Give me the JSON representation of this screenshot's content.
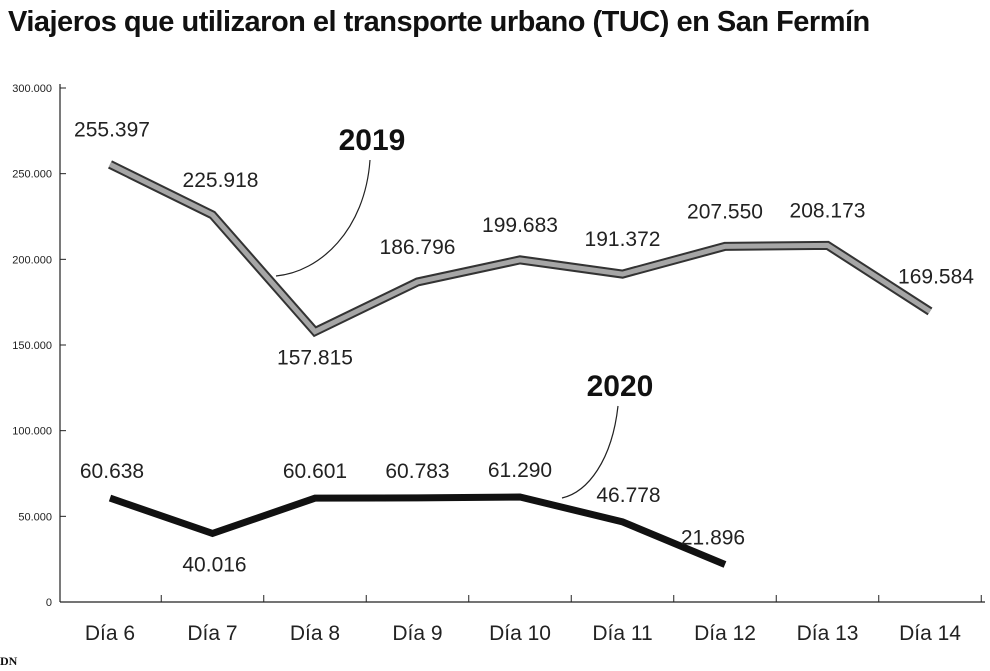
{
  "title": "Viajeros que utilizaron el transporte urbano (TUC) en San Fermín",
  "logo": "DN",
  "chart_data": {
    "type": "line",
    "title": "Viajeros que utilizaron el transporte urbano (TUC) en San Fermín",
    "xlabel": "",
    "ylabel": "",
    "ylim": [
      0,
      300000
    ],
    "grid": false,
    "categories": [
      "Día 6",
      "Día 7",
      "Día 8",
      "Día 9",
      "Día 10",
      "Día 11",
      "Día 12",
      "Día 13",
      "Día 14"
    ],
    "yticks": [
      "0",
      "50.000",
      "100.000",
      "150.000",
      "200.000",
      "250.000",
      "300.000"
    ],
    "yticks_values": [
      0,
      50000,
      100000,
      150000,
      200000,
      250000,
      300000
    ],
    "series": [
      {
        "name": "2019",
        "color": "#a6a6a6",
        "values": [
          255397,
          225918,
          157815,
          186796,
          199683,
          191372,
          207550,
          208173,
          169584
        ],
        "labels": [
          "255.397",
          "225.918",
          "157.815",
          "186.796",
          "199.683",
          "191.372",
          "207.550",
          "208.173",
          "169.584"
        ]
      },
      {
        "name": "2020",
        "color": "#111111",
        "values": [
          60638,
          40016,
          60601,
          60783,
          61290,
          46778,
          21896,
          null,
          null
        ],
        "labels": [
          "60.638",
          "40.016",
          "60.601",
          "60.783",
          "61.290",
          "46.778",
          "21.896",
          null,
          null
        ]
      }
    ]
  }
}
